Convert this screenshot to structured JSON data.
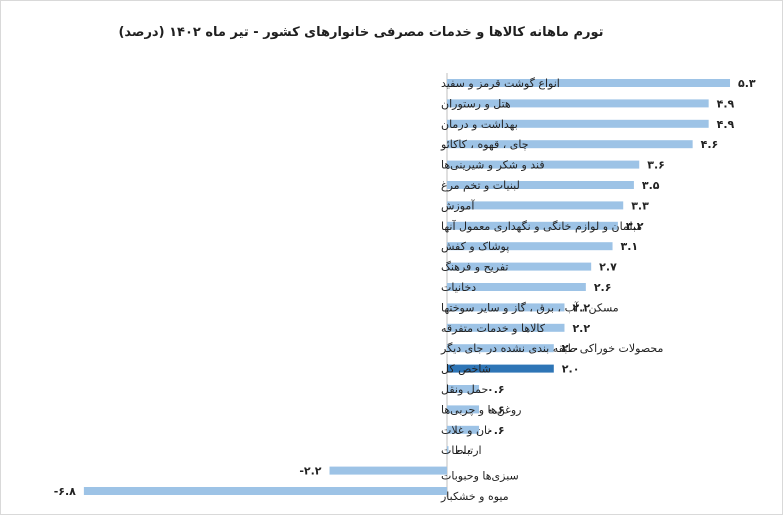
{
  "chart_data": {
    "type": "bar",
    "orientation": "horizontal",
    "title": "تورم ماهانه کالاها و خدمات مصرفی خانوارهای کشور - تیر ماه ۱۴۰۲ (درصد)",
    "xlim": [
      -6.8,
      5.3
    ],
    "grid": false,
    "categories": [
      "انواع گوشت قرمز و سفید",
      "هتل و رستوران",
      "بهداشت و درمان",
      "چای ، قهوه ، کاکائو",
      "قند و شکر و شیرینی‌ها",
      "لبنیات و تخم مرغ",
      "آموزش",
      "مبلمان و لوازم خانگی و نگهداری معمول آنها",
      "پوشاک و کفش",
      "تفریح و فرهنگ",
      "دخانیات",
      "مسکن ، آب ، برق ، گاز و سایر سوختها",
      "کالاها و خدمات متفرقه",
      "محصولات خوراکی طبقه بندی نشده در جای دیگر",
      "شاخص کل",
      "حمل ونقل",
      "روغن‌ها و چربی‌ها",
      "نان و غلات",
      "ارتباطات",
      "سبزی‌ها وحبوبات",
      "میوه و خشکبار"
    ],
    "values": [
      5.3,
      4.9,
      4.9,
      4.6,
      3.6,
      3.5,
      3.3,
      3.2,
      3.1,
      2.7,
      2.6,
      2.2,
      2.2,
      2.0,
      2.0,
      0.6,
      0.6,
      0.6,
      0.0,
      -2.2,
      -6.8
    ],
    "value_labels": [
      "۵.۳",
      "۴.۹",
      "۴.۹",
      "۴.۶",
      "۳.۶",
      "۳.۵",
      "۳.۳",
      "۳.۲",
      "۳.۱",
      "۲.۷",
      "۲.۶",
      "۲.۲",
      "۲.۲",
      "۲.۰",
      "۲.۰",
      "۰.۶",
      "۰.۶",
      "۰.۶",
      "۰.۰",
      "-۲.۲",
      "-۶.۸"
    ],
    "highlight_category": "شاخص کل",
    "colors": {
      "bar": "#9DC3E6",
      "highlight": "#2E75B6",
      "axis": "#bfbfbf",
      "text": "#222222"
    }
  }
}
